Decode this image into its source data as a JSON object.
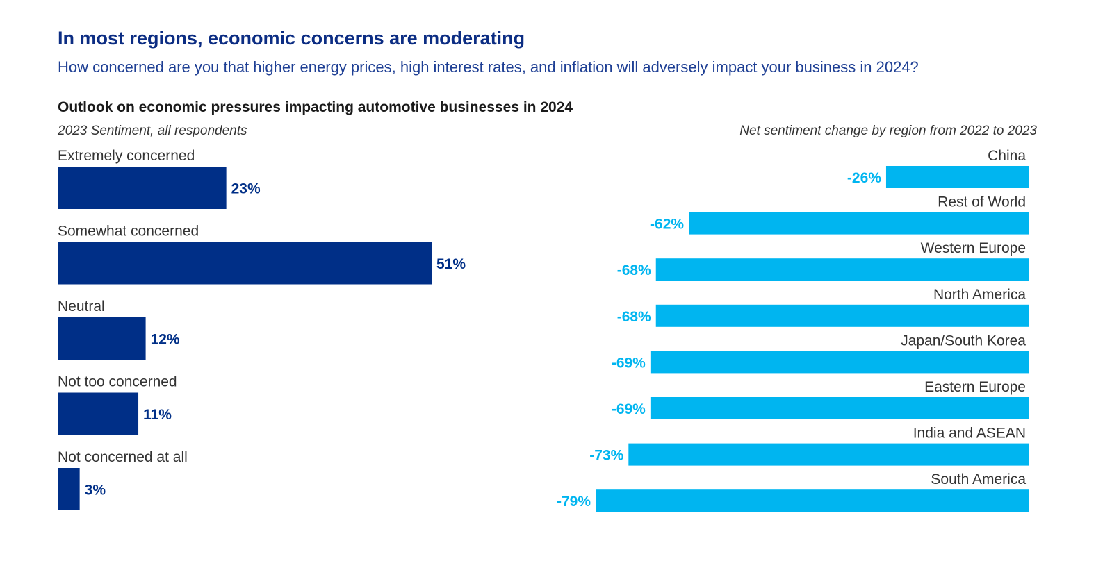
{
  "header": {
    "title": "In most regions, economic concerns are moderating",
    "subtitle": "How concerned are you that higher energy prices, high interest rates, and inflation will adversely impact your business in 2024?",
    "chart_title": "Outlook on economic pressures impacting automotive businesses in 2024"
  },
  "colors": {
    "left_bars": "#002f87",
    "right_bars": "#00b5f0",
    "title": "#0c2d83"
  },
  "chart_data": [
    {
      "type": "bar",
      "orientation": "horizontal",
      "subtitle": "2023 Sentiment, all respondents",
      "categories": [
        "Extremely concerned",
        "Somewhat concerned",
        "Neutral",
        "Not too concerned",
        "Not concerned at all"
      ],
      "values": [
        23,
        51,
        12,
        11,
        3
      ],
      "value_labels": [
        "23%",
        "51%",
        "12%",
        "11%",
        "3%"
      ],
      "unit": "%"
    },
    {
      "type": "bar",
      "orientation": "horizontal",
      "subtitle": "Net sentiment change by region from 2022 to 2023",
      "categories": [
        "China",
        "Rest of World",
        "Western Europe",
        "North America",
        "Japan/South Korea",
        "Eastern Europe",
        "India and ASEAN",
        "South America"
      ],
      "values": [
        -26,
        -62,
        -68,
        -68,
        -69,
        -69,
        -73,
        -79
      ],
      "value_labels": [
        "-26%",
        "-62%",
        "-68%",
        "-68%",
        "-69%",
        "-69%",
        "-73%",
        "-79%"
      ],
      "unit": "%"
    }
  ]
}
